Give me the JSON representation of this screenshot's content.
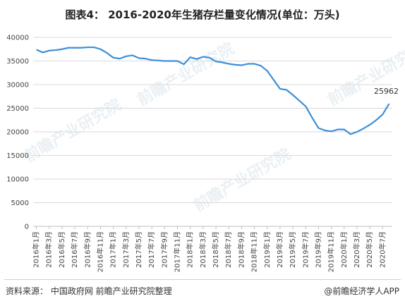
{
  "title": "图表4： 2016-2020年生猪存栏量变化情况(单位：万头)",
  "source": "资料来源： 中国政府网 前瞻产业研究院整理",
  "credit": "@前瞻经济学人APP",
  "watermark": "前瞻产业研究院",
  "colors": {
    "line": "#3d8fd8",
    "grid": "#d9d9d9",
    "axis": "#bfbfbf"
  },
  "chart_data": {
    "type": "line",
    "title": "图表4： 2016-2020年生猪存栏量变化情况(单位：万头)",
    "xlabel": "",
    "ylabel": "",
    "ylim": [
      0,
      40000
    ],
    "yticks": [
      "0",
      "5000",
      "10000",
      "15000",
      "20000",
      "25000",
      "30000",
      "35000",
      "40000"
    ],
    "grid": true,
    "x_tick_labels": [
      "2016年1月",
      "2016年3月",
      "2016年5月",
      "2016年7月",
      "2016年9月",
      "2016年11月",
      "2017年1月",
      "2017年3月",
      "2017年5月",
      "2017年7月",
      "2017年9月",
      "2017年11月",
      "2018年1月",
      "2018年3月",
      "2018年5月",
      "2018年7月",
      "2018年9月",
      "2018年11月",
      "2019年1月",
      "2019年3月",
      "2019年5月",
      "2019年7月",
      "2019年9月",
      "2019年11月",
      "2020年1月",
      "2020年3月",
      "2020年5月",
      "2020年7月"
    ],
    "categories": [
      "2016年1月",
      "2016年2月",
      "2016年3月",
      "2016年4月",
      "2016年5月",
      "2016年6月",
      "2016年7月",
      "2016年8月",
      "2016年9月",
      "2016年10月",
      "2016年11月",
      "2016年12月",
      "2017年1月",
      "2017年2月",
      "2017年3月",
      "2017年4月",
      "2017年5月",
      "2017年6月",
      "2017年7月",
      "2017年8月",
      "2017年9月",
      "2017年10月",
      "2017年11月",
      "2017年12月",
      "2018年1月",
      "2018年2月",
      "2018年3月",
      "2018年4月",
      "2018年5月",
      "2018年6月",
      "2018年7月",
      "2018年8月",
      "2018年9月",
      "2018年10月",
      "2018年11月",
      "2018年12月",
      "2019年1月",
      "2019年2月",
      "2019年3月",
      "2019年4月",
      "2019年5月",
      "2019年6月",
      "2019年7月",
      "2019年8月",
      "2019年9月",
      "2019年10月",
      "2019年11月",
      "2019年12月",
      "2020年1月",
      "2020年2月",
      "2020年3月",
      "2020年4月",
      "2020年5月",
      "2020年6月",
      "2020年7月",
      "2020年8月"
    ],
    "values": [
      37400,
      36800,
      37200,
      37300,
      37500,
      37800,
      37800,
      37800,
      37900,
      37900,
      37500,
      36700,
      35700,
      35500,
      36000,
      36200,
      35600,
      35500,
      35200,
      35100,
      35000,
      35000,
      35000,
      34300,
      35800,
      35400,
      35900,
      35700,
      34900,
      34700,
      34400,
      34200,
      34100,
      34400,
      34400,
      34000,
      32900,
      31000,
      29100,
      28900,
      27800,
      26600,
      25400,
      23000,
      20800,
      20300,
      20100,
      20500,
      20500,
      19500,
      20000,
      20700,
      21500,
      22500,
      23700,
      25962
    ],
    "annotations": [
      {
        "category": "2020年8月",
        "text": "25962"
      }
    ]
  }
}
